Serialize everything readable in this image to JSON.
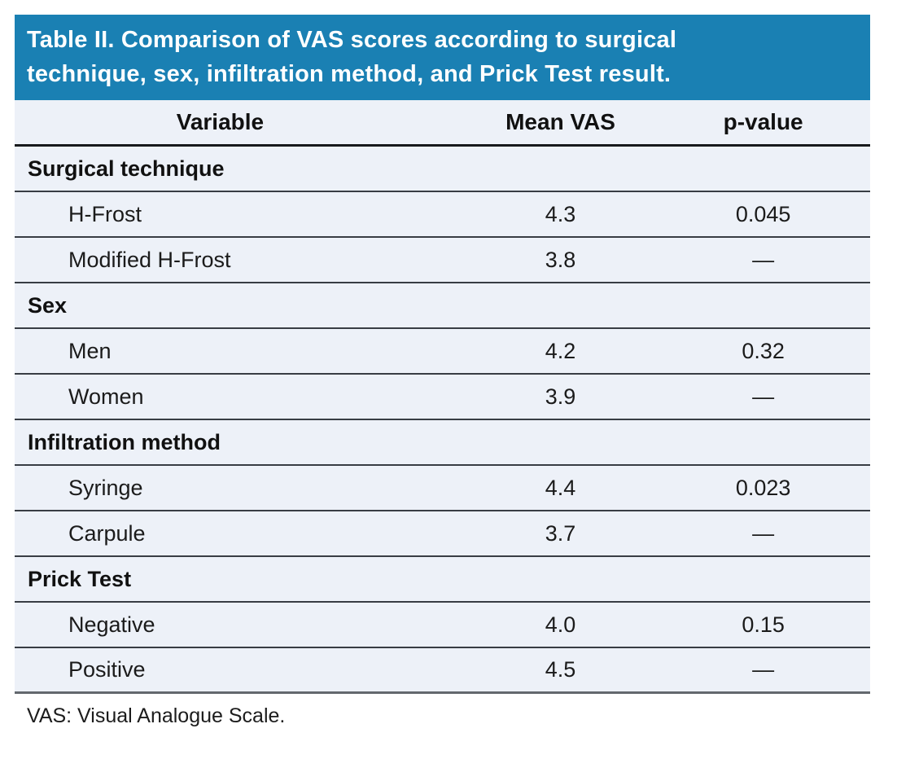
{
  "title": {
    "line1": "Table II. Comparison of VAS scores according to surgical",
    "line2": "technique, sex, infiltration method, and Prick Test result."
  },
  "header": {
    "variable": "Variable",
    "mean_vas": "Mean VAS",
    "p_value": "p-value"
  },
  "table": {
    "rows": [
      {
        "type": "section",
        "label": "Surgical technique",
        "mean": "",
        "p": ""
      },
      {
        "type": "item",
        "label": "H-Frost",
        "mean": "4.3",
        "p": "0.045"
      },
      {
        "type": "item",
        "label": "Modified H-Frost",
        "mean": "3.8",
        "p": "—"
      },
      {
        "type": "section",
        "label": "Sex",
        "mean": "",
        "p": ""
      },
      {
        "type": "item",
        "label": "Men",
        "mean": "4.2",
        "p": "0.32"
      },
      {
        "type": "item",
        "label": "Women",
        "mean": "3.9",
        "p": "—"
      },
      {
        "type": "section",
        "label": "Infiltration method",
        "mean": "",
        "p": ""
      },
      {
        "type": "item",
        "label": "Syringe",
        "mean": "4.4",
        "p": "0.023"
      },
      {
        "type": "item",
        "label": "Carpule",
        "mean": "3.7",
        "p": "—"
      },
      {
        "type": "section",
        "label": "Prick Test",
        "mean": "",
        "p": ""
      },
      {
        "type": "item",
        "label": "Negative",
        "mean": "4.0",
        "p": "0.15"
      },
      {
        "type": "item",
        "label": "Positive",
        "mean": "4.5",
        "p": "—"
      }
    ]
  },
  "footnote": "VAS: Visual Analogue Scale.",
  "colors": {
    "banner_blue": "#1a80b3",
    "row_background": "#edf1f8",
    "header_underline": "#17191c",
    "row_separator": "#383d44",
    "title_text": "#ffffff",
    "body_text": "#1b1b1b"
  }
}
